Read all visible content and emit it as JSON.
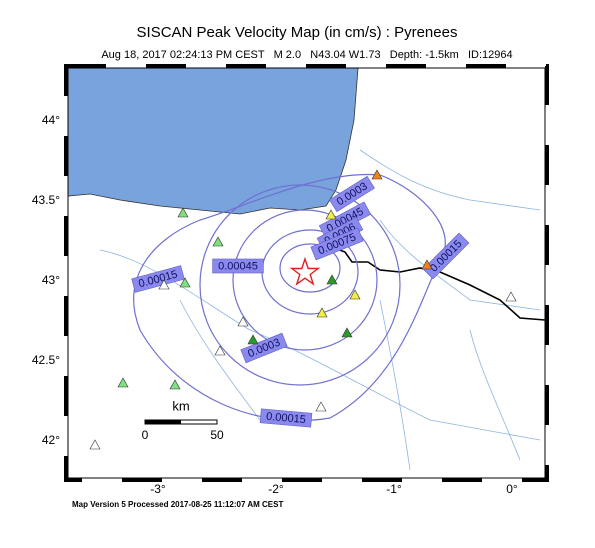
{
  "header": {
    "title": "SISCAN Peak Velocity Map (in cm/s) : Pyrenees",
    "subtitle": "Aug 18, 2017 02:24:13 PM CEST   M 2.0   N43.04 W1.73   Depth: -1.5km   ID:12964"
  },
  "map": {
    "lat_labels": [
      {
        "value": 44,
        "label": "44°"
      },
      {
        "value": 43.5,
        "label": "43.5°"
      },
      {
        "value": 43,
        "label": "43°"
      },
      {
        "value": 42.5,
        "label": "42.5°"
      },
      {
        "value": 42,
        "label": "42°"
      }
    ],
    "lon_labels": [
      {
        "value": -3,
        "label": "-3°"
      },
      {
        "value": -2,
        "label": "-2°"
      },
      {
        "value": -1,
        "label": "-1°"
      },
      {
        "value": 0,
        "label": "0°"
      }
    ],
    "contour_labels": [
      "0.0003",
      "0.00045",
      "0.0006",
      "0.00075",
      "0.00015",
      "0.00045",
      "0.00015",
      "0.0003",
      "0.00015"
    ],
    "scale_bar": {
      "unit": "km",
      "ticks": [
        "0",
        "50"
      ]
    }
  },
  "footer": "Map Version 5 Processed 2017-08-25 11:12:07 AM CEST"
}
